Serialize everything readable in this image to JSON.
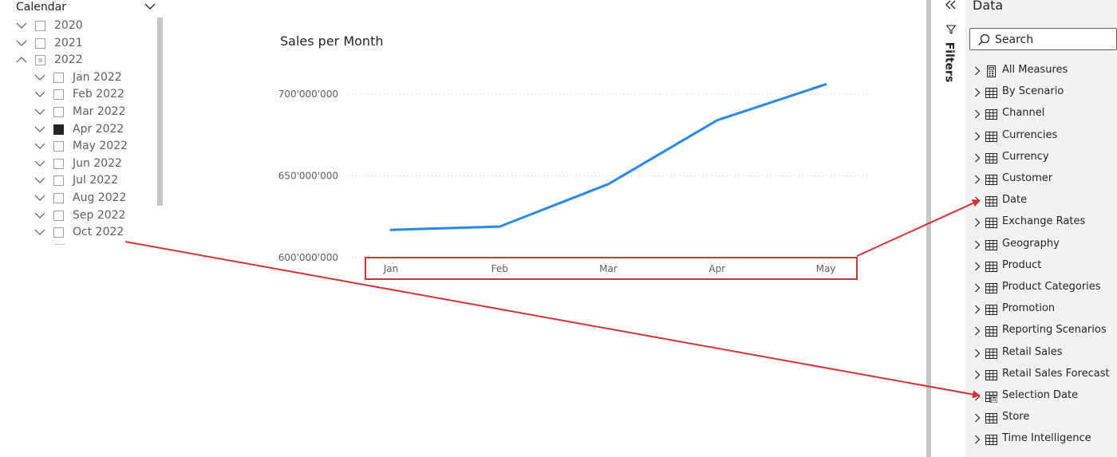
{
  "slicer": {
    "title": "Calendar",
    "items": [
      {
        "label": "2020",
        "level": 0,
        "state": "empty",
        "expanded": false
      },
      {
        "label": "2021",
        "level": 0,
        "state": "empty",
        "expanded": false
      },
      {
        "label": "2022",
        "level": 0,
        "state": "partial",
        "expanded": true
      },
      {
        "label": "Jan 2022",
        "level": 1,
        "state": "empty",
        "expanded": false
      },
      {
        "label": "Feb 2022",
        "level": 1,
        "state": "empty",
        "expanded": false
      },
      {
        "label": "Mar 2022",
        "level": 1,
        "state": "empty",
        "expanded": false
      },
      {
        "label": "Apr 2022",
        "level": 1,
        "state": "checked",
        "expanded": false
      },
      {
        "label": "May 2022",
        "level": 1,
        "state": "empty",
        "expanded": false
      },
      {
        "label": "Jun 2022",
        "level": 1,
        "state": "empty",
        "expanded": false
      },
      {
        "label": "Jul 2022",
        "level": 1,
        "state": "empty",
        "expanded": false
      },
      {
        "label": "Aug 2022",
        "level": 1,
        "state": "empty",
        "expanded": false
      },
      {
        "label": "Sep 2022",
        "level": 1,
        "state": "empty",
        "expanded": false
      },
      {
        "label": "Oct 2022",
        "level": 1,
        "state": "empty",
        "expanded": false
      }
    ]
  },
  "chart_data": {
    "type": "line",
    "title": "Sales per Month",
    "categories": [
      "Jan",
      "Feb",
      "Mar",
      "Apr",
      "May"
    ],
    "series": [
      {
        "values": [
          617000000,
          619000000,
          645000000,
          684000000,
          706000000
        ]
      }
    ],
    "y_ticks": [
      "600'000'000",
      "650'000'000",
      "700'000'000"
    ],
    "y_tick_values": [
      600000000,
      650000000,
      700000000
    ],
    "ylim": [
      600000000,
      700000000
    ],
    "grid": true,
    "line_color": "#2b88e8"
  },
  "filters": {
    "label": "Filters"
  },
  "data_pane": {
    "title": "Data",
    "search_placeholder": "Search",
    "fields": [
      {
        "label": "All Measures",
        "icon": "calculator-icon"
      },
      {
        "label": "By Scenario",
        "icon": "table-icon"
      },
      {
        "label": "Channel",
        "icon": "table-icon"
      },
      {
        "label": "Currencies",
        "icon": "table-icon"
      },
      {
        "label": "Currency",
        "icon": "table-icon"
      },
      {
        "label": "Customer",
        "icon": "table-icon"
      },
      {
        "label": "Date",
        "icon": "table-icon"
      },
      {
        "label": "Exchange Rates",
        "icon": "table-icon"
      },
      {
        "label": "Geography",
        "icon": "table-icon"
      },
      {
        "label": "Product",
        "icon": "table-icon"
      },
      {
        "label": "Product Categories",
        "icon": "table-icon"
      },
      {
        "label": "Promotion",
        "icon": "table-icon"
      },
      {
        "label": "Reporting Scenarios",
        "icon": "table-icon"
      },
      {
        "label": "Retail Sales",
        "icon": "table-icon"
      },
      {
        "label": "Retail Sales Forecast",
        "icon": "table-icon"
      },
      {
        "label": "Selection Date",
        "icon": "calculated-table-icon"
      },
      {
        "label": "Store",
        "icon": "table-icon"
      },
      {
        "label": "Time Intelligence",
        "icon": "table-icon"
      }
    ]
  },
  "colors": {
    "annotation": "#d13438",
    "line": "#2b88e8",
    "pane": "#f3f2f1"
  }
}
